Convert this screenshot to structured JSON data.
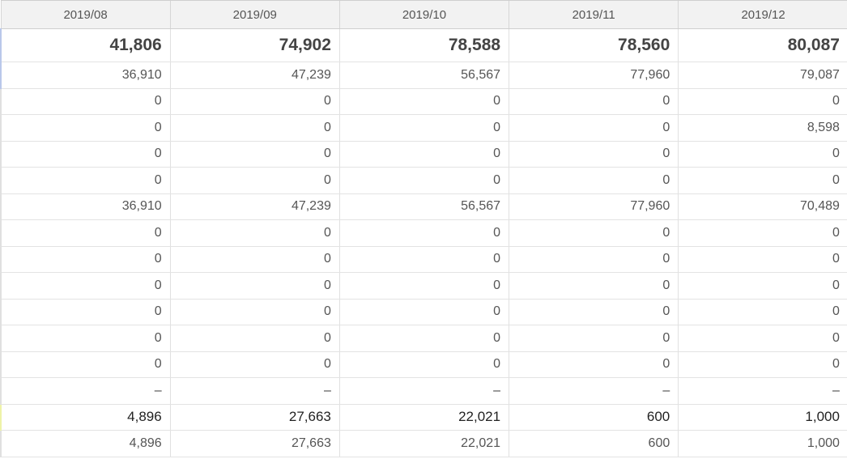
{
  "columns": [
    "2019/08",
    "2019/09",
    "2019/10",
    "2019/11",
    "2019/12"
  ],
  "rows": [
    [
      "41,806",
      "74,902",
      "78,588",
      "78,560",
      "80,087"
    ],
    [
      "36,910",
      "47,239",
      "56,567",
      "77,960",
      "79,087"
    ],
    [
      "0",
      "0",
      "0",
      "0",
      "0"
    ],
    [
      "0",
      "0",
      "0",
      "0",
      "8,598"
    ],
    [
      "0",
      "0",
      "0",
      "0",
      "0"
    ],
    [
      "0",
      "0",
      "0",
      "0",
      "0"
    ],
    [
      "36,910",
      "47,239",
      "56,567",
      "77,960",
      "70,489"
    ],
    [
      "0",
      "0",
      "0",
      "0",
      "0"
    ],
    [
      "0",
      "0",
      "0",
      "0",
      "0"
    ],
    [
      "0",
      "0",
      "0",
      "0",
      "0"
    ],
    [
      "0",
      "0",
      "0",
      "0",
      "0"
    ],
    [
      "0",
      "0",
      "0",
      "0",
      "0"
    ],
    [
      "0",
      "0",
      "0",
      "0",
      "0"
    ],
    [
      "–",
      "–",
      "–",
      "–",
      "–"
    ],
    [
      "4,896",
      "27,663",
      "22,021",
      "600",
      "1,000"
    ],
    [
      "4,896",
      "27,663",
      "22,021",
      "600",
      "1,000"
    ]
  ]
}
